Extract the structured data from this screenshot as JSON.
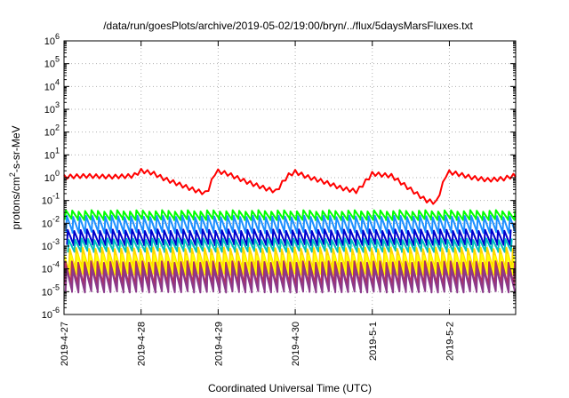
{
  "chart_data": {
    "type": "line",
    "title": "/data/run/goesPlots/archive/2019-05-02/19:00/bryn/../flux/5daysMarsFluxes.txt",
    "xlabel": "Coordinated Universal Time (UTC)",
    "ylabel": {
      "prefix": "protons/cm",
      "sup": "2",
      "suffix": "-s-sr-MeV"
    },
    "xlim": [
      0,
      5.86
    ],
    "x_ticks": [
      {
        "x": 0,
        "label": "2019-4-27"
      },
      {
        "x": 1,
        "label": "2019-4-28"
      },
      {
        "x": 2,
        "label": "2019-4-29"
      },
      {
        "x": 3,
        "label": "2019-4-30"
      },
      {
        "x": 4,
        "label": "2019-5-1"
      },
      {
        "x": 5,
        "label": "2019-5-2"
      }
    ],
    "yscale": "log",
    "ylim_exp": [
      -6,
      6
    ],
    "y_ticks": [
      {
        "exp": -6,
        "base": "10",
        "sup": "-6"
      },
      {
        "exp": -5,
        "base": "10",
        "sup": "-5"
      },
      {
        "exp": -4,
        "base": "10",
        "sup": "-4"
      },
      {
        "exp": -3,
        "base": "10",
        "sup": "-3"
      },
      {
        "exp": -2,
        "base": "10",
        "sup": "-2"
      },
      {
        "exp": -1,
        "base": "10",
        "sup": "-1"
      },
      {
        "exp": 0,
        "base": "10",
        "sup": "0"
      },
      {
        "exp": 1,
        "base": "10",
        "sup": "1"
      },
      {
        "exp": 2,
        "base": "10",
        "sup": "2"
      },
      {
        "exp": 3,
        "base": "10",
        "sup": "3"
      },
      {
        "exp": 4,
        "base": "10",
        "sup": "4"
      },
      {
        "exp": 5,
        "base": "10",
        "sup": "5"
      },
      {
        "exp": 6,
        "base": "10",
        "sup": "6"
      }
    ],
    "grid": true,
    "sawtooth_period_days": 0.0833,
    "series": [
      {
        "color": "#ff0000",
        "width": 2,
        "style": "envelope",
        "hi": 1.2,
        "lo": 0.8,
        "x": [
          0,
          0.3,
          0.6,
          0.9,
          1.0,
          1.15,
          1.3,
          1.5,
          1.7,
          1.85,
          1.97,
          2.12,
          2.35,
          2.6,
          2.75,
          2.9,
          3.0,
          3.15,
          3.35,
          3.6,
          3.8,
          4.0,
          4.25,
          4.5,
          4.7,
          4.83,
          4.97,
          5.1,
          5.3,
          5.5,
          5.7,
          5.86
        ],
        "y": [
          1.1,
          1.2,
          1.1,
          1.2,
          2.0,
          1.6,
          0.9,
          0.5,
          0.28,
          0.2,
          2.0,
          1.5,
          0.7,
          0.35,
          0.25,
          1.2,
          1.8,
          1.1,
          0.7,
          0.35,
          0.25,
          1.5,
          1.2,
          0.3,
          0.1,
          0.08,
          1.8,
          1.5,
          1.0,
          0.8,
          0.9,
          1.3
        ]
      },
      {
        "color": "#00ff00",
        "width": 2,
        "style": "saw",
        "hi": 0.035,
        "lo": 0.015
      },
      {
        "color": "#1e90ff",
        "width": 2,
        "style": "saw",
        "hi": 0.02,
        "lo": 0.004
      },
      {
        "color": "#0000cd",
        "width": 2,
        "style": "saw",
        "hi": 0.005,
        "lo": 0.0012
      },
      {
        "color": "#00c0c0",
        "width": 2,
        "style": "saw",
        "hi": 0.002,
        "lo": 0.0006
      },
      {
        "color": "#ffd700",
        "width": 2,
        "style": "saw",
        "hi": 0.0008,
        "lo": 0.0001
      },
      {
        "color": "#ffff00",
        "width": 2,
        "style": "saw",
        "hi": 0.0004,
        "lo": 6e-05
      },
      {
        "color": "#b03060",
        "width": 2,
        "style": "saw",
        "hi": 0.0002,
        "lo": 2e-05
      },
      {
        "color": "#8b3a8b",
        "width": 2,
        "style": "saw",
        "hi": 0.0001,
        "lo": 1e-05
      }
    ]
  }
}
